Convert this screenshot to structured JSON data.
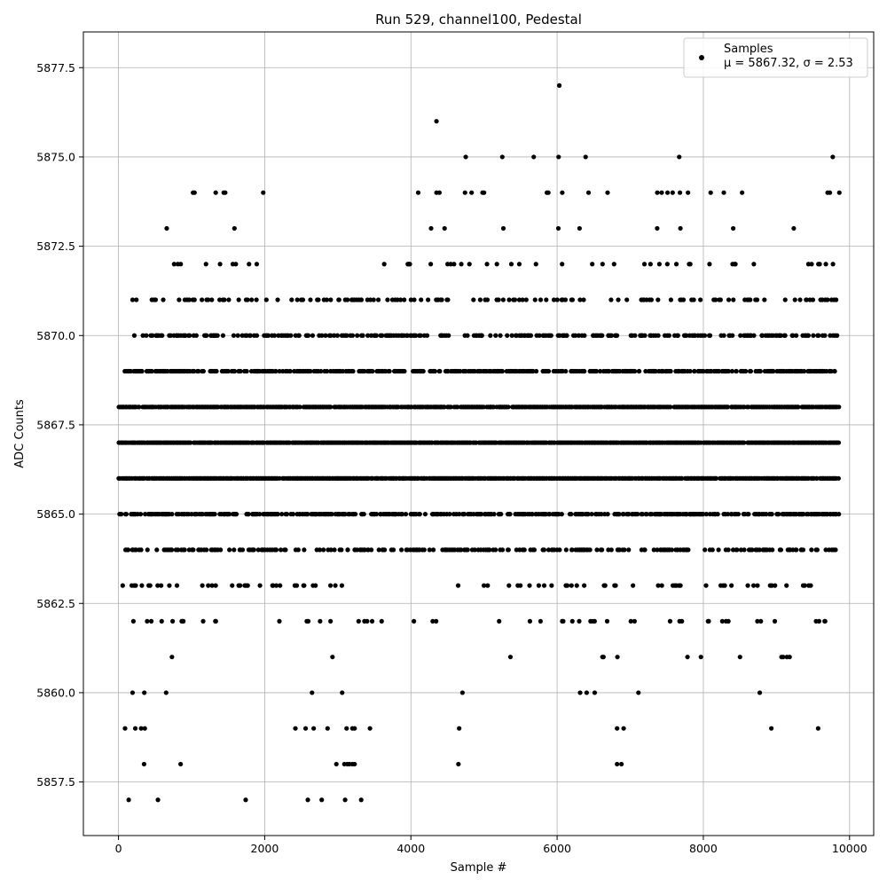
{
  "chart_data": {
    "type": "scatter",
    "title": "Run 529, channel100, Pedestal",
    "xlabel": "Sample #",
    "ylabel": "ADC Counts",
    "xlim": [
      -480,
      10330
    ],
    "ylim": [
      5856.0,
      5878.5
    ],
    "x_ticks": [
      0,
      2000,
      4000,
      6000,
      8000,
      10000
    ],
    "x_tick_labels": [
      "0",
      "2000",
      "4000",
      "6000",
      "8000",
      "10000"
    ],
    "y_ticks": [
      5857.5,
      5860.0,
      5862.5,
      5865.0,
      5867.5,
      5870.0,
      5872.5,
      5875.0,
      5877.5
    ],
    "y_tick_labels": [
      "5857.5",
      "5860.0",
      "5862.5",
      "5865.0",
      "5867.5",
      "5870.0",
      "5872.5",
      "5875.0",
      "5877.5"
    ],
    "grid": true,
    "legend_position": "top-right",
    "series": [
      {
        "name": "Samples",
        "label_line1": "Samples",
        "label_line2": "μ = 5867.32, σ = 2.53",
        "color": "#000000",
        "marker": "circle"
      }
    ],
    "x_count": 9850,
    "dense_levels": [
      {
        "y": 5866,
        "ranges": [
          [
            0,
            9850
          ]
        ],
        "density": 0.9
      },
      {
        "y": 5867,
        "ranges": [
          [
            0,
            9850
          ]
        ],
        "density": 0.9
      },
      {
        "y": 5868,
        "ranges": [
          [
            0,
            9850
          ]
        ],
        "density": 0.85
      },
      {
        "y": 5869,
        "ranges": [
          [
            80,
            9850
          ]
        ],
        "density": 0.55
      },
      {
        "y": 5865,
        "ranges": [
          [
            0,
            9850
          ]
        ],
        "density": 0.55
      },
      {
        "y": 5870,
        "ranges": [
          [
            180,
            9850
          ]
        ],
        "density": 0.35
      },
      {
        "y": 5864,
        "ranges": [
          [
            0,
            9850
          ]
        ],
        "density": 0.35
      },
      {
        "y": 5871,
        "ranges": [
          [
            100,
            9850
          ]
        ],
        "density": 0.2
      },
      {
        "y": 5863,
        "ranges": [
          [
            0,
            3600
          ],
          [
            4600,
            9550
          ]
        ],
        "density": 0.15
      },
      {
        "y": 5872,
        "ranges": [
          [
            580,
            2000
          ],
          [
            3600,
            9850
          ]
        ],
        "density": 0.1
      },
      {
        "y": 5862,
        "ranges": [
          [
            0,
            1400
          ],
          [
            2100,
            3650
          ],
          [
            4000,
            4700
          ],
          [
            5100,
            9750
          ]
        ],
        "density": 0.09
      },
      {
        "y": 5873,
        "ranges": [
          [
            640,
            2000
          ],
          [
            4100,
            9400
          ]
        ],
        "density": 0.03
      },
      {
        "y": 5861,
        "ranges": [
          [
            60,
            900
          ],
          [
            2150,
            3450
          ],
          [
            4600,
            4700
          ],
          [
            5350,
            9200
          ]
        ],
        "density": 0.025
      },
      {
        "y": 5860,
        "ranges": [
          [
            40,
            900
          ],
          [
            2100,
            3550
          ],
          [
            4650,
            4700
          ],
          [
            5950,
            9150
          ]
        ],
        "density": 0.02
      }
    ],
    "sparse_points": [
      [
        4350,
        5876
      ],
      [
        6030,
        5877
      ],
      [
        4750,
        5875
      ],
      [
        5250,
        5875
      ],
      [
        5680,
        5875
      ],
      [
        6020,
        5875
      ],
      [
        6390,
        5875
      ],
      [
        7670,
        5875
      ],
      [
        9770,
        5875
      ],
      [
        1020,
        5874
      ],
      [
        1040,
        5874
      ],
      [
        1330,
        5874
      ],
      [
        1440,
        5874
      ],
      [
        1460,
        5874
      ],
      [
        1980,
        5874
      ],
      [
        4100,
        5874
      ],
      [
        4350,
        5874
      ],
      [
        4390,
        5874
      ],
      [
        4740,
        5874
      ],
      [
        4830,
        5874
      ],
      [
        4980,
        5874
      ],
      [
        5000,
        5874
      ],
      [
        5860,
        5874
      ],
      [
        5880,
        5874
      ],
      [
        6070,
        5874
      ],
      [
        6430,
        5874
      ],
      [
        6690,
        5874
      ],
      [
        7370,
        5874
      ],
      [
        7430,
        5874
      ],
      [
        7510,
        5874
      ],
      [
        7580,
        5874
      ],
      [
        7680,
        5874
      ],
      [
        7790,
        5874
      ],
      [
        8100,
        5874
      ],
      [
        8280,
        5874
      ],
      [
        8530,
        5874
      ],
      [
        9700,
        5874
      ],
      [
        9730,
        5874
      ],
      [
        9860,
        5874
      ],
      [
        90,
        5859
      ],
      [
        230,
        5859
      ],
      [
        310,
        5859
      ],
      [
        360,
        5859
      ],
      [
        2420,
        5859
      ],
      [
        2560,
        5859
      ],
      [
        2670,
        5859
      ],
      [
        2860,
        5859
      ],
      [
        3120,
        5859
      ],
      [
        3200,
        5859
      ],
      [
        3230,
        5859
      ],
      [
        3440,
        5859
      ],
      [
        4660,
        5859
      ],
      [
        6820,
        5859
      ],
      [
        6910,
        5859
      ],
      [
        8930,
        5859
      ],
      [
        9570,
        5859
      ],
      [
        350,
        5858
      ],
      [
        850,
        5858
      ],
      [
        2980,
        5858
      ],
      [
        3090,
        5858
      ],
      [
        3130,
        5858
      ],
      [
        3160,
        5858
      ],
      [
        3200,
        5858
      ],
      [
        3230,
        5858
      ],
      [
        4650,
        5858
      ],
      [
        6820,
        5858
      ],
      [
        6880,
        5858
      ],
      [
        140,
        5857
      ],
      [
        540,
        5857
      ],
      [
        1740,
        5857
      ],
      [
        2590,
        5857
      ],
      [
        2780,
        5857
      ],
      [
        3100,
        5857
      ],
      [
        3320,
        5857
      ]
    ]
  }
}
